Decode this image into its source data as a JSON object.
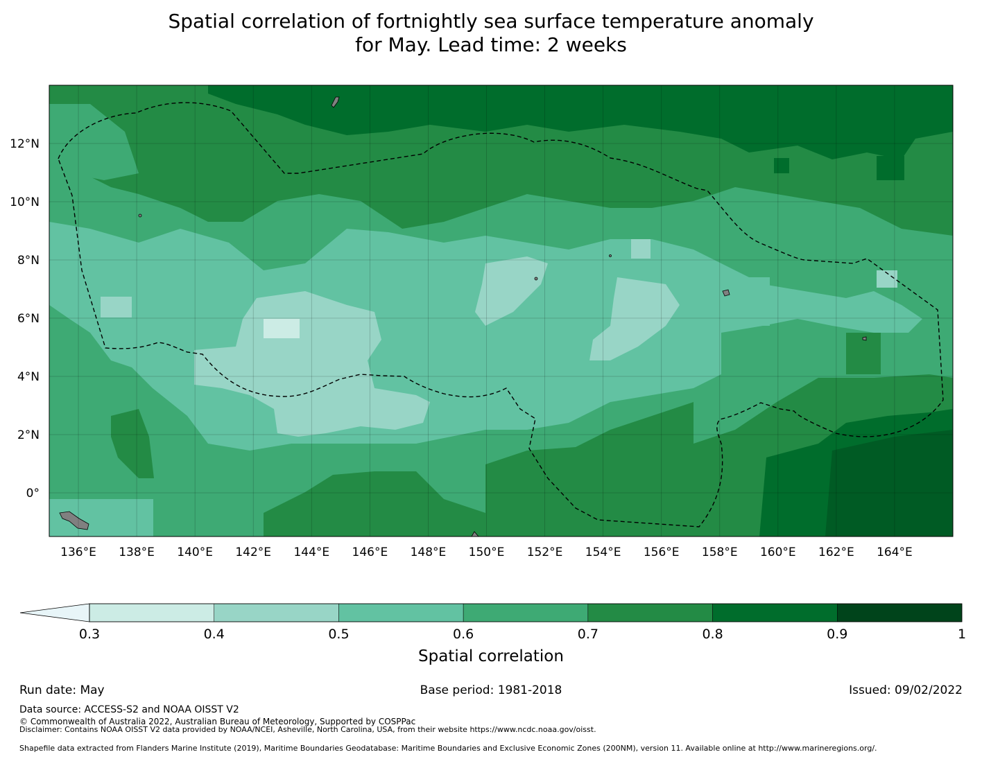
{
  "title_line1": "Spatial correlation of fortnightly sea surface temperature anomaly",
  "title_line2": "for May. Lead time: 2 weeks",
  "map": {
    "lon_range": [
      135,
      166
    ],
    "lat_range": [
      -1.5,
      14
    ],
    "lon_ticks": [
      "136°E",
      "138°E",
      "140°E",
      "142°E",
      "144°E",
      "146°E",
      "148°E",
      "150°E",
      "152°E",
      "154°E",
      "156°E",
      "158°E",
      "160°E",
      "162°E",
      "164°E"
    ],
    "lat_ticks": [
      "12°N",
      "10°N",
      "8°N",
      "6°N",
      "4°N",
      "2°N",
      "0°"
    ],
    "grid": true,
    "boundary_line": "dashed",
    "land_color": "#808080"
  },
  "colorbar": {
    "title": "Spatial correlation",
    "levels": [
      "0.3",
      "0.4",
      "0.5",
      "0.6",
      "0.7",
      "0.8",
      "0.9",
      "1"
    ],
    "colors": [
      "#ccece5",
      "#98d5c6",
      "#62c2a2",
      "#3eaa74",
      "#238b45",
      "#006d2c",
      "#00441b"
    ],
    "under_color": "#e8f5f8",
    "extend": "min"
  },
  "footer": {
    "run_date": "Run date: May",
    "base_period": "Base period: 1981-2018",
    "issued": "Issued: 09/02/2022",
    "data_source": "Data source: ACCESS-S2 and NOAA OISST V2",
    "copyright": "© Commonwealth of Australia 2022, Australian Bureau of Meteorology, Supported by COSPPac",
    "disclaimer": "Disclaimer: Contains NOAA OISST V2 data provided by NOAA/NCEI, Asheville, North Carolina, USA, from their website https://www.ncdc.noaa.gov/oisst.",
    "shapefile": "Shapefile data extracted from Flanders Marine Institute (2019), Maritime Boundaries Geodatabase: Maritime Boundaries and Exclusive Economic Zones (200NM), version 11. Available online at http://www.marineregions.org/."
  }
}
